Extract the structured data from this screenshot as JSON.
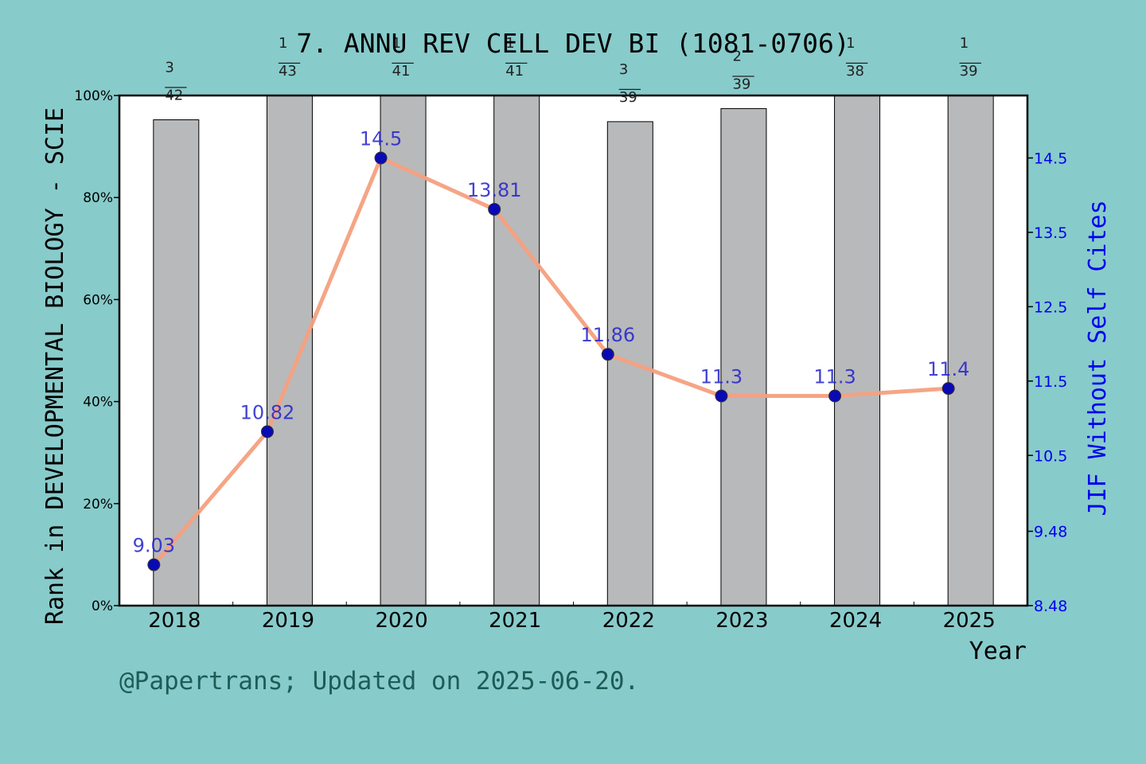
{
  "chart_data": {
    "type": "bar",
    "title": "7. ANNU REV CELL DEV BI (1081-0706)",
    "xlabel": "Year",
    "ylabel_left": "Rank in DEVELOPMENTAL BIOLOGY - SCIE",
    "ylabel_right": "JIF Without Self Cites",
    "footer": "@Papertrans; Updated on 2025-06-20.",
    "categories": [
      "2018",
      "2019",
      "2020",
      "2021",
      "2022",
      "2023",
      "2024",
      "2025"
    ],
    "left_axis": {
      "range": [
        0,
        100
      ],
      "ticks": [
        0,
        20,
        40,
        60,
        80,
        100
      ],
      "tick_labels": [
        "0%",
        "20%",
        "40%",
        "60%",
        "80%",
        "100%"
      ]
    },
    "right_axis": {
      "range": [
        8.48,
        15.34
      ],
      "ticks": [
        8.48,
        9.48,
        10.5,
        11.5,
        12.5,
        13.5,
        14.5
      ],
      "tick_labels": [
        "8.48",
        "9.48",
        "10.5",
        "11.5",
        "12.5",
        "13.5",
        "14.5"
      ],
      "color": "#0000ee"
    },
    "bar_series": {
      "rank": [
        3,
        1,
        1,
        1,
        3,
        2,
        1,
        1
      ],
      "total": [
        42,
        43,
        41,
        41,
        39,
        39,
        38,
        39
      ],
      "rank_labels": [
        "3",
        "1",
        "1",
        "1",
        "3",
        "2",
        "1",
        "1"
      ],
      "total_labels": [
        "42",
        "43",
        "41",
        "41",
        "39",
        "39",
        "38",
        "39"
      ],
      "separator": "___",
      "color": "#b8b9bb"
    },
    "line_series": {
      "values": [
        9.03,
        10.82,
        14.5,
        13.81,
        11.86,
        11.3,
        11.3,
        11.4
      ],
      "labels": [
        "9.03",
        "10.82",
        "14.5",
        "13.81",
        "11.86",
        "11.3",
        "11.3",
        "11.4"
      ],
      "line_color": "#f4a07f",
      "marker_color": "#0a0ab4"
    }
  }
}
